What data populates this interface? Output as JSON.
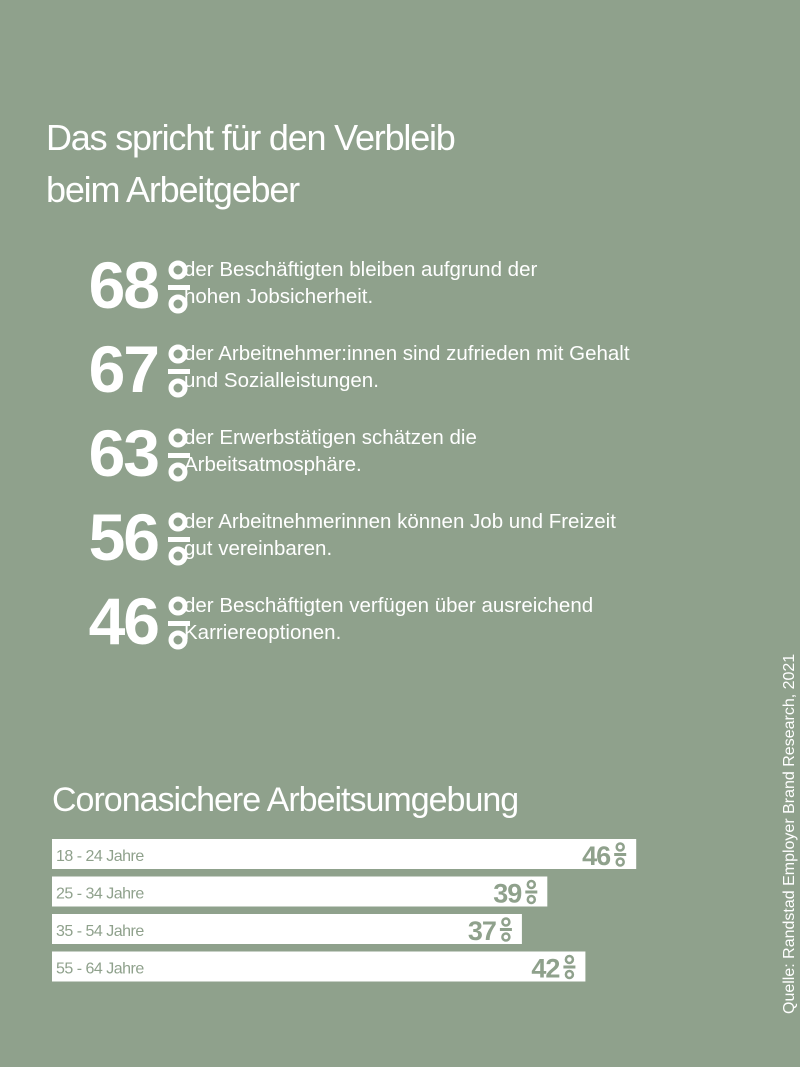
{
  "headline": {
    "line1": "Das spricht für den Verbleib",
    "line2": "beim Arbeitgeber"
  },
  "stats": [
    {
      "value": "68",
      "text1": "der Beschäftigten bleiben aufgrund der",
      "text2": "hohen Jobsicherheit."
    },
    {
      "value": "67",
      "text1": "der Arbeitnehmer:innen sind zufrieden mit Gehalt",
      "text2": "und Sozialleistungen."
    },
    {
      "value": "63",
      "text1": "der Erwerbstätigen schätzen die",
      "text2": "Arbeitsatmosphäre."
    },
    {
      "value": "56",
      "text1": "der Arbeitnehmerinnen können Job und Freizeit",
      "text2": "gut vereinbaren."
    },
    {
      "value": "46",
      "text1": "der Beschäftigten verfügen über ausreichend",
      "text2": "Karriereoptionen."
    }
  ],
  "percent_icon": "percent-sign-icon",
  "chart_data": {
    "type": "bar",
    "orientation": "horizontal",
    "title": "Coronasichere Arbeitsumgebung",
    "categories": [
      "18 - 24 Jahre",
      "25 - 34 Jahre",
      "35 - 54 Jahre",
      "55 - 64 Jahre"
    ],
    "values": [
      46,
      39,
      37,
      42
    ],
    "value_labels": [
      "46",
      "39",
      "37",
      "42"
    ],
    "unit": "%",
    "legend": false,
    "grid": false
  },
  "source": "Quelle: Randstad Employer Brand Research, 2021",
  "colors": {
    "background": "#8fa18c",
    "text": "#ffffff",
    "bar_fill": "#ffffff",
    "bar_text": "#8fa18c"
  }
}
